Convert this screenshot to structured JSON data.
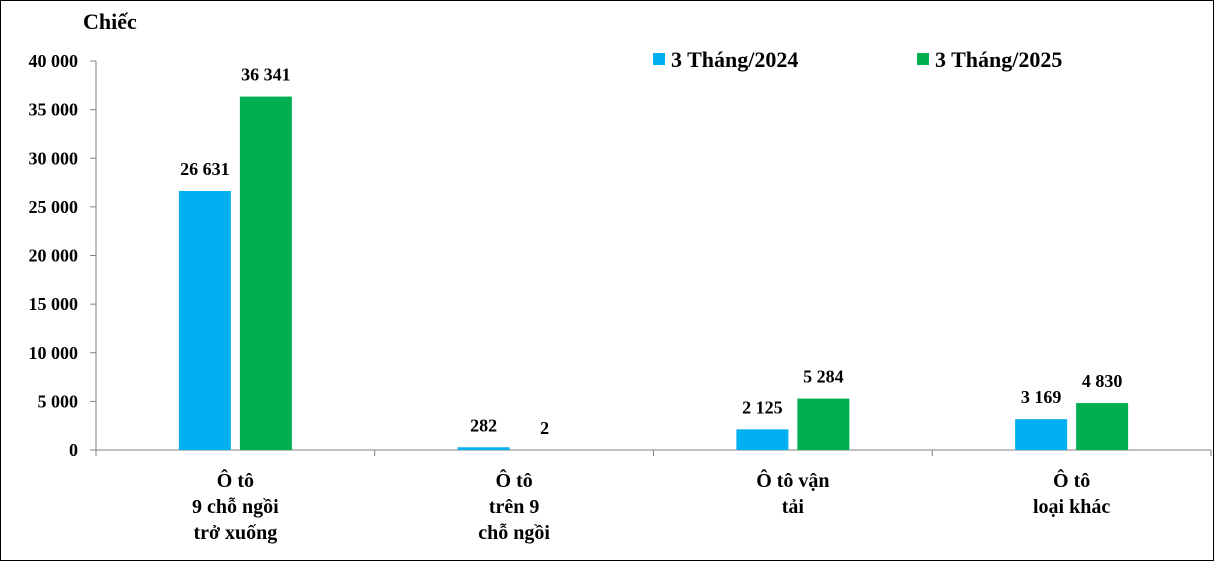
{
  "chart_data": {
    "type": "bar",
    "title": "",
    "ylabel": "Chiếc",
    "xlabel": "",
    "ylim": [
      0,
      40000
    ],
    "yticks": [
      0,
      5000,
      10000,
      15000,
      20000,
      25000,
      30000,
      35000,
      40000
    ],
    "ytick_labels": [
      "0",
      "5 000",
      "10 000",
      "15 000",
      "20 000",
      "25 000",
      "30 000",
      "35 000",
      "40 000"
    ],
    "grid": false,
    "legend_position": "top-right",
    "categories": [
      [
        "Ô tô",
        "9 chỗ ngồi",
        "trở xuống"
      ],
      [
        "Ô tô",
        "trên 9",
        "chỗ ngồi"
      ],
      [
        "Ô tô vận",
        "tải"
      ],
      [
        "Ô tô",
        "loại khác"
      ]
    ],
    "series": [
      {
        "name": "3 Tháng/2024",
        "color": "#00b0f0",
        "values": [
          26631,
          282,
          2125,
          3169
        ],
        "labels": [
          "26 631",
          "282",
          "2 125",
          "3 169"
        ]
      },
      {
        "name": "3 Tháng/2025",
        "color": "#00b050",
        "values": [
          36341,
          2,
          5284,
          4830
        ],
        "labels": [
          "36 341",
          "2",
          "5 284",
          "4 830"
        ]
      }
    ]
  }
}
